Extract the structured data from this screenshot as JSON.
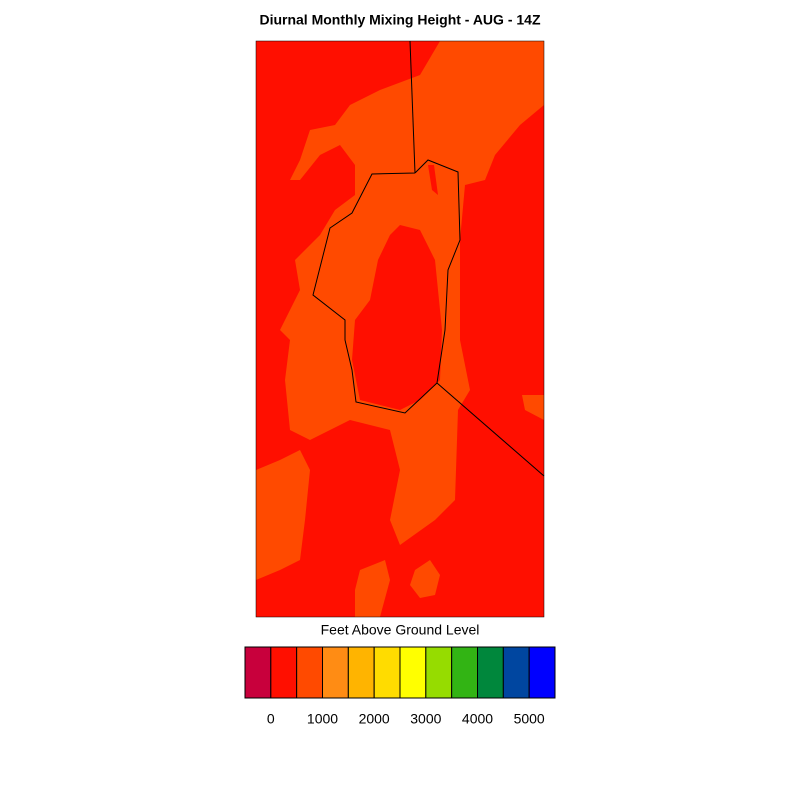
{
  "title": "Diurnal Monthly Mixing Height - AUG - 14Z",
  "colorbar": {
    "label": "Feet Above Ground Level",
    "colors": [
      "#c8003c",
      "#ff0f00",
      "#ff4a00",
      "#ff8c14",
      "#ffb400",
      "#ffdc00",
      "#ffff00",
      "#96dc00",
      "#32b414",
      "#00873c",
      "#0046a0",
      "#0000ff"
    ],
    "lim": [
      -500,
      5500
    ],
    "ticks": [
      0,
      1000,
      2000,
      3000,
      4000,
      5000
    ]
  }
}
